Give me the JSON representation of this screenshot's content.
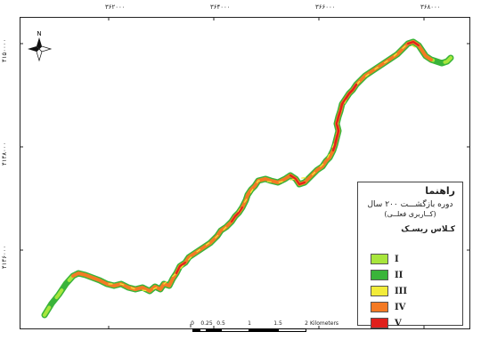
{
  "map": {
    "x_ticks": [
      "۳۶۲۰۰۰",
      "۳۶۴۰۰۰",
      "۳۶۶۰۰۰",
      "۳۶۸۰۰۰"
    ],
    "y_ticks": [
      "۴۱۵۰۰۰۰",
      "۴۱۴۸۰۰۰",
      "۴۱۴۶۰۰۰"
    ],
    "north_label": "N",
    "river_colors": {
      "I": "#a8e63c",
      "II": "#3ab43a",
      "III": "#f2ec3a",
      "IV": "#f47a24",
      "V": "#e0201c"
    }
  },
  "legend": {
    "title": "راهنما",
    "subtitle": "دوره بازگشـــت ۲۰۰ سال",
    "subtitle2": "(کــاربری فعلــی)",
    "class_title": "کـلاس ریسـک",
    "items": [
      {
        "label": "I",
        "color": "#a8e63c"
      },
      {
        "label": "II",
        "color": "#3ab43a"
      },
      {
        "label": "III",
        "color": "#f2ec3a"
      },
      {
        "label": "IV",
        "color": "#f47a24"
      },
      {
        "label": "V",
        "color": "#e0201c"
      }
    ]
  },
  "scalebar": {
    "labels": [
      "0",
      "0.25",
      "0.5",
      "1",
      "1.5",
      "2"
    ],
    "unit": "Kilometers"
  }
}
